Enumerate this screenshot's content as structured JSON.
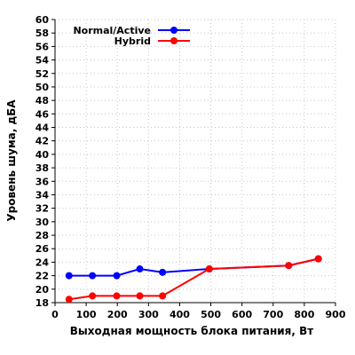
{
  "chart_data": {
    "type": "line",
    "title": "",
    "xlabel": "Выходная мощность блока питания, Вт",
    "ylabel": "Уровень шума, дБА",
    "xlim": [
      0,
      900
    ],
    "ylim": [
      18,
      60
    ],
    "xticks": [
      0,
      100,
      200,
      300,
      400,
      500,
      600,
      700,
      800,
      900
    ],
    "yticks": [
      18,
      20,
      22,
      24,
      26,
      28,
      30,
      32,
      34,
      36,
      38,
      40,
      42,
      44,
      46,
      48,
      50,
      52,
      54,
      56,
      58,
      60
    ],
    "grid": true,
    "legend_position": "top-left",
    "series": [
      {
        "name": "Normal/Active",
        "color": "#0000ff",
        "points": [
          [
            45,
            22
          ],
          [
            120,
            22
          ],
          [
            198,
            22
          ],
          [
            272,
            23
          ],
          [
            345,
            22.5
          ],
          [
            495,
            23
          ],
          [
            750,
            23.5
          ],
          [
            845,
            24.5
          ]
        ]
      },
      {
        "name": "Hybrid",
        "color": "#ff0000",
        "points": [
          [
            45,
            18.5
          ],
          [
            120,
            19
          ],
          [
            198,
            19
          ],
          [
            272,
            19
          ],
          [
            345,
            19
          ],
          [
            495,
            23
          ],
          [
            750,
            23.5
          ],
          [
            845,
            24.5
          ]
        ]
      }
    ]
  }
}
